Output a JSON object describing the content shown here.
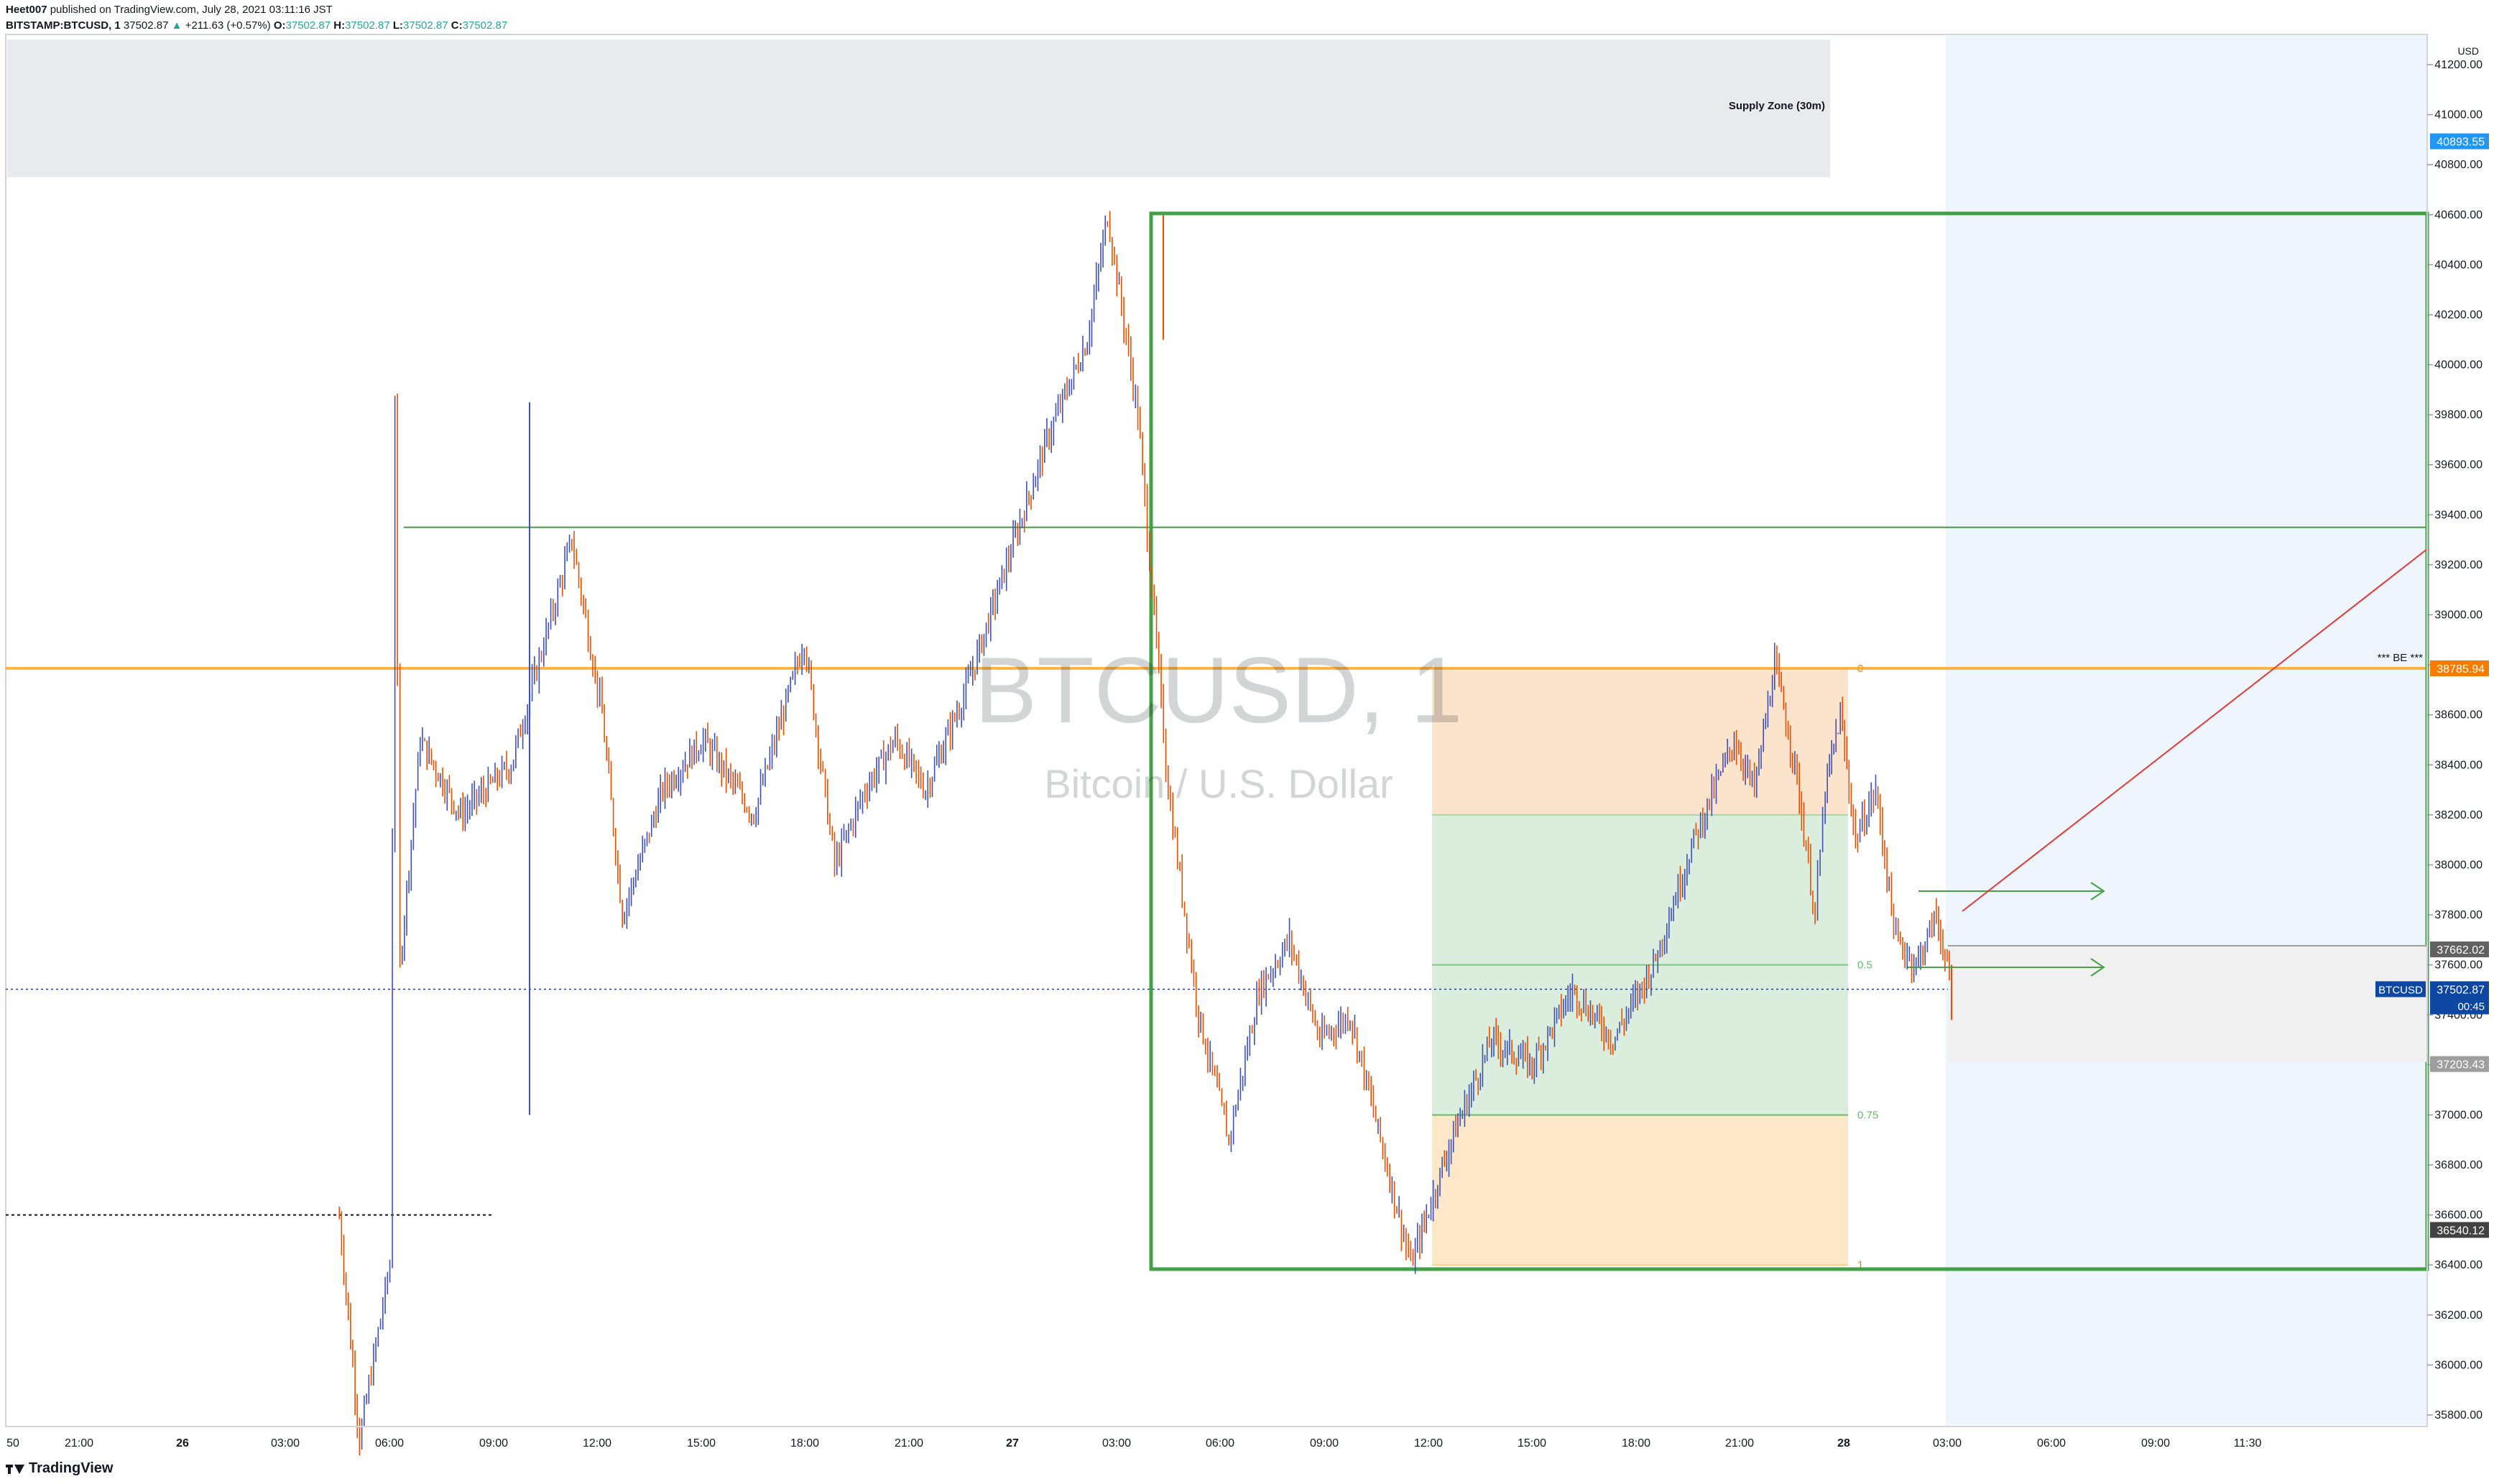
{
  "header": {
    "publisher": "Heet007",
    "published_text": "published on TradingView.com, July 28, 2021 03:11:16 JST",
    "symbol": "BITSTAMP:BTCUSD, 1",
    "price": "37502.87",
    "change": "+211.63 (+0.57%)",
    "o_label": "O:",
    "o_value": "37502.87",
    "h_label": "H:",
    "h_value": "37502.87",
    "l_label": "L:",
    "l_value": "37502.87",
    "c_label": "C:",
    "c_value": "37502.87"
  },
  "watermark": {
    "symbol": "BTCUSD, 1",
    "description": "Bitcoin / U.S. Dollar"
  },
  "footer": {
    "brand": "TradingView"
  },
  "chart_data": {
    "type": "candlestick",
    "currency_label": "USD",
    "y_ticks": [
      "41200.00",
      "41000.00",
      "40800.00",
      "40600.00",
      "40400.00",
      "40200.00",
      "40000.00",
      "39800.00",
      "39600.00",
      "39400.00",
      "39200.00",
      "39000.00",
      "38800.00",
      "38600.00",
      "38400.00",
      "38200.00",
      "38000.00",
      "37800.00",
      "37600.00",
      "37400.00",
      "37200.00",
      "37000.00",
      "36800.00",
      "36600.00",
      "36400.00",
      "36200.00",
      "36000.00",
      "35800.00"
    ],
    "x_ticks": [
      "50",
      "21:00",
      "26",
      "03:00",
      "06:00",
      "09:00",
      "12:00",
      "15:00",
      "18:00",
      "21:00",
      "27",
      "03:00",
      "06:00",
      "09:00",
      "12:00",
      "15:00",
      "18:00",
      "21:00",
      "28",
      "03:00",
      "06:00",
      "09:00",
      "11:30"
    ],
    "price_labels": [
      {
        "value": "40893.55",
        "color": "#2196f3"
      },
      {
        "value": "38785.94",
        "color": "#f57c00"
      },
      {
        "value": "37662.02",
        "color": "#616161"
      },
      {
        "value": "37502.87",
        "color": "#0d47a1",
        "sub": "00:45",
        "tag": "BTCUSD"
      },
      {
        "value": "37203.43",
        "color": "#9e9e9e"
      },
      {
        "value": "36540.12",
        "color": "#424242"
      }
    ],
    "supply_zone": {
      "label": "Supply Zone (30m)",
      "from": 40750,
      "to": 41300
    },
    "be_line": {
      "label": "*** BE ***",
      "value": 38785.94
    },
    "green_hline": 39350,
    "dotted_low": 36600,
    "fib_levels": [
      {
        "label": "0",
        "value": 38785.94
      },
      {
        "label": "0.5",
        "value": 37600
      },
      {
        "label": "0.75",
        "value": 37000
      },
      {
        "label": "1",
        "value": 36400
      }
    ],
    "key_points": [
      {
        "t": -0.05,
        "price": 36600
      },
      {
        "t": 0.28,
        "price": 36590
      },
      {
        "t": 0.3,
        "price": 35700
      },
      {
        "t": 0.33,
        "price": 36400
      },
      {
        "t": 0.335,
        "price": 39850
      },
      {
        "t": 0.34,
        "price": 37600
      },
      {
        "t": 0.36,
        "price": 38500
      },
      {
        "t": 0.4,
        "price": 38200
      },
      {
        "t": 0.45,
        "price": 38400
      },
      {
        "t": 0.51,
        "price": 39300
      },
      {
        "t": 0.54,
        "price": 38600
      },
      {
        "t": 0.56,
        "price": 37800
      },
      {
        "t": 0.6,
        "price": 38300
      },
      {
        "t": 0.64,
        "price": 38500
      },
      {
        "t": 0.69,
        "price": 38200
      },
      {
        "t": 0.74,
        "price": 38900
      },
      {
        "t": 0.77,
        "price": 38000
      },
      {
        "t": 0.8,
        "price": 38300
      },
      {
        "t": 0.83,
        "price": 38500
      },
      {
        "t": 0.86,
        "price": 38300
      },
      {
        "t": 0.9,
        "price": 38700
      },
      {
        "t": 0.94,
        "price": 39200
      },
      {
        "t": 0.98,
        "price": 39700
      },
      {
        "t": 1.02,
        "price": 40100
      },
      {
        "t": 1.04,
        "price": 40600
      },
      {
        "t": 1.07,
        "price": 39800
      },
      {
        "t": 1.1,
        "price": 38300
      },
      {
        "t": 1.13,
        "price": 37400
      },
      {
        "t": 1.16,
        "price": 36900
      },
      {
        "t": 1.19,
        "price": 37500
      },
      {
        "t": 1.22,
        "price": 37700
      },
      {
        "t": 1.25,
        "price": 37300
      },
      {
        "t": 1.28,
        "price": 37400
      },
      {
        "t": 1.31,
        "price": 36900
      },
      {
        "t": 1.34,
        "price": 36400
      },
      {
        "t": 1.38,
        "price": 36900
      },
      {
        "t": 1.42,
        "price": 37300
      },
      {
        "t": 1.46,
        "price": 37200
      },
      {
        "t": 1.5,
        "price": 37500
      },
      {
        "t": 1.54,
        "price": 37300
      },
      {
        "t": 1.58,
        "price": 37600
      },
      {
        "t": 1.62,
        "price": 38100
      },
      {
        "t": 1.66,
        "price": 38500
      },
      {
        "t": 1.68,
        "price": 38300
      },
      {
        "t": 1.7,
        "price": 38800
      },
      {
        "t": 1.72,
        "price": 38400
      },
      {
        "t": 1.74,
        "price": 37800
      },
      {
        "t": 1.75,
        "price": 38300
      },
      {
        "t": 1.765,
        "price": 38600
      },
      {
        "t": 1.78,
        "price": 38100
      },
      {
        "t": 1.8,
        "price": 38300
      },
      {
        "t": 1.82,
        "price": 37700
      },
      {
        "t": 1.84,
        "price": 37600
      },
      {
        "t": 1.86,
        "price": 37800
      },
      {
        "t": 1.875,
        "price": 37500
      }
    ]
  }
}
